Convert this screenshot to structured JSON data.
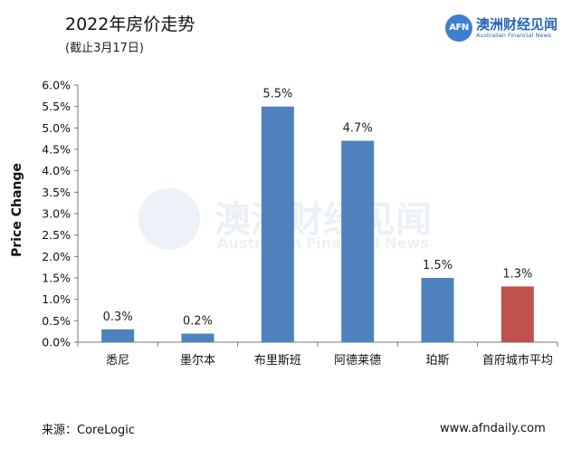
{
  "header": {
    "title": "2022年房价走势",
    "subtitle": "(截止3月17日)"
  },
  "logo": {
    "mark": "AFN",
    "name_cn": "澳洲财经见闻",
    "name_en": "Australian Financial News"
  },
  "footer": {
    "source": "来源：CoreLogic",
    "website": "www.afndaily.com"
  },
  "chart_data": {
    "type": "bar",
    "title": "2022年房价走势",
    "subtitle": "(截止3月17日)",
    "xlabel": "",
    "ylabel": "Price Change",
    "ylim": [
      0,
      6.0
    ],
    "ytick_step": 0.5,
    "ytick_format": "percent_1dp",
    "grid": false,
    "categories": [
      "悉尼",
      "墨尔本",
      "布里斯班",
      "阿德莱德",
      "珀斯",
      "首府城市平均"
    ],
    "values": [
      0.3,
      0.2,
      5.5,
      4.7,
      1.5,
      1.3
    ],
    "data_labels": [
      "0.3%",
      "0.2%",
      "5.5%",
      "4.7%",
      "1.5%",
      "1.3%"
    ],
    "colors": [
      "#4f81bd",
      "#4f81bd",
      "#4f81bd",
      "#4f81bd",
      "#4f81bd",
      "#c0504d"
    ]
  }
}
